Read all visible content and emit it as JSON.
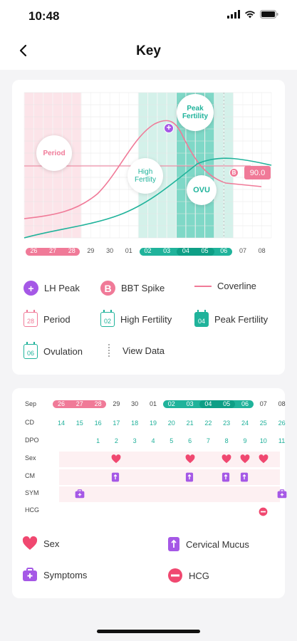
{
  "status_bar": {
    "time": "10:48"
  },
  "nav": {
    "title": "Key"
  },
  "colors": {
    "pink": "#f07a98",
    "pink_bg": "#fce4e9",
    "teal": "#20b39b",
    "teal_light": "#d4f1ea",
    "teal_dark": "#7fd8c7",
    "purple": "#a558e6"
  },
  "chart_data": {
    "type": "line",
    "x": [
      "26",
      "27",
      "28",
      "29",
      "30",
      "01",
      "02",
      "03",
      "04",
      "05",
      "06",
      "07",
      "08"
    ],
    "series": [
      {
        "name": "BBT",
        "color": "#f07a98"
      },
      {
        "name": "LH",
        "color": "#20b39b"
      }
    ],
    "coverline_value": "90.0",
    "phase_labels": {
      "period": "Period",
      "high_fertility": [
        "High",
        "Fertlity"
      ],
      "peak_fertility": [
        "Peak",
        "Fertility"
      ],
      "ovulation": "OVU"
    },
    "spike_marker": "B"
  },
  "legend": {
    "lh_peak": "LH Peak",
    "bbt_spike": "BBT Spike",
    "bbt_spike_icon": "B",
    "coverline": "Coverline",
    "period": "Period",
    "period_day": "28",
    "high_fertility": "High Fertility",
    "high_fertility_day": "02",
    "peak_fertility": "Peak Fertility",
    "peak_fertility_day": "04",
    "ovulation": "Ovulation",
    "ovulation_day": "06",
    "view_data": "View Data"
  },
  "table": {
    "row_labels": {
      "month": "Sep",
      "cd": "CD",
      "dpo": "DPO",
      "sex": "Sex",
      "cm": "CM",
      "sym": "SYM",
      "hcg": "HCG"
    },
    "dates": [
      "26",
      "27",
      "28",
      "29",
      "30",
      "01",
      "02",
      "03",
      "04",
      "05",
      "06",
      "07",
      "08"
    ],
    "cd": [
      "14",
      "15",
      "16",
      "17",
      "18",
      "19",
      "20",
      "21",
      "22",
      "23",
      "24",
      "25",
      "26"
    ],
    "dpo": [
      "",
      "",
      "1",
      "2",
      "3",
      "4",
      "5",
      "6",
      "7",
      "8",
      "9",
      "10",
      "11"
    ],
    "sex_days": [
      3,
      7,
      9,
      10,
      11
    ],
    "cm_days": [
      3,
      7,
      9,
      10
    ],
    "sym_days": [
      1,
      12
    ],
    "hcg_days": [
      11
    ]
  },
  "legend2": {
    "sex": "Sex",
    "cervical_mucus": "Cervical Mucus",
    "symptoms": "Symptoms",
    "hcg": "HCG"
  }
}
